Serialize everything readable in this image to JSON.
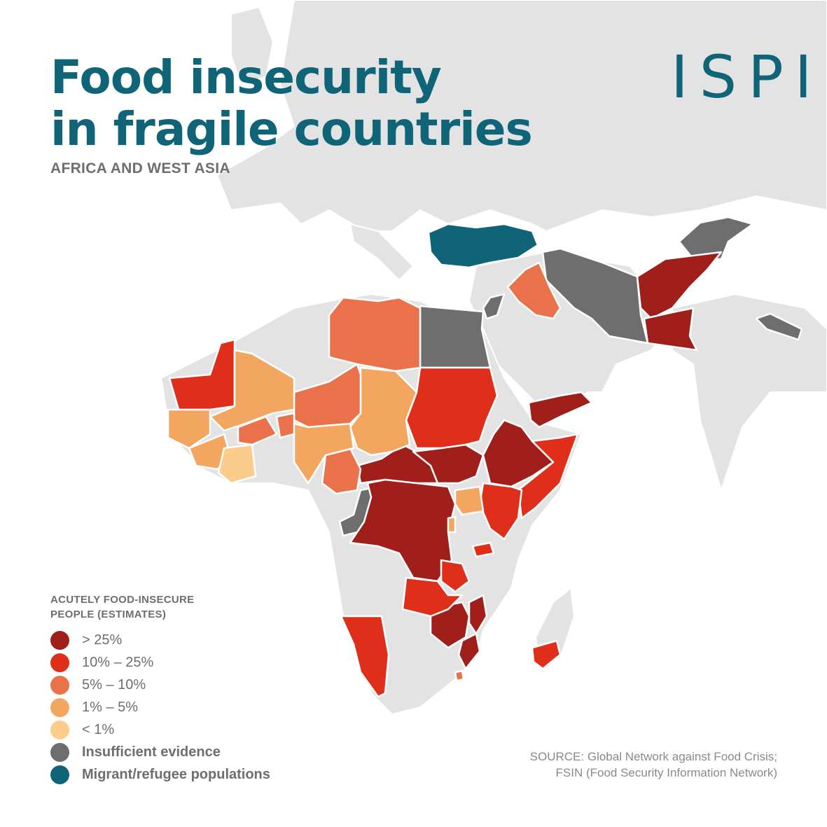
{
  "title": {
    "line1": "Food insecurity",
    "line2": "in fragile countries",
    "subtitle": "AFRICA AND WEST ASIA"
  },
  "logo": {
    "text": "ISPI"
  },
  "legend": {
    "title": "ACUTELY FOOD-INSECURE PEOPLE (ESTIMATES)",
    "items": [
      {
        "label": "> 25%",
        "color": "#a01f1b"
      },
      {
        "label": "10% – 25%",
        "color": "#df2f1a"
      },
      {
        "label": "5% – 10%",
        "color": "#e9724b"
      },
      {
        "label": "1% – 5%",
        "color": "#f3a660"
      },
      {
        "label": "< 1%",
        "color": "#fccc8c"
      },
      {
        "label": "Insufficient evidence",
        "color": "#6e6e6e"
      },
      {
        "label": "Migrant/refugee populations",
        "color": "#0f6577"
      }
    ]
  },
  "source": {
    "line1": "SOURCE: Global Network against Food Crisis;",
    "line2": "FSIN (Food Security Information Network)"
  },
  "colors": {
    "background": "#ffffff",
    "land": "#e3e3e3",
    "title": "#0f6577",
    "text": "#6e6e6e"
  }
}
